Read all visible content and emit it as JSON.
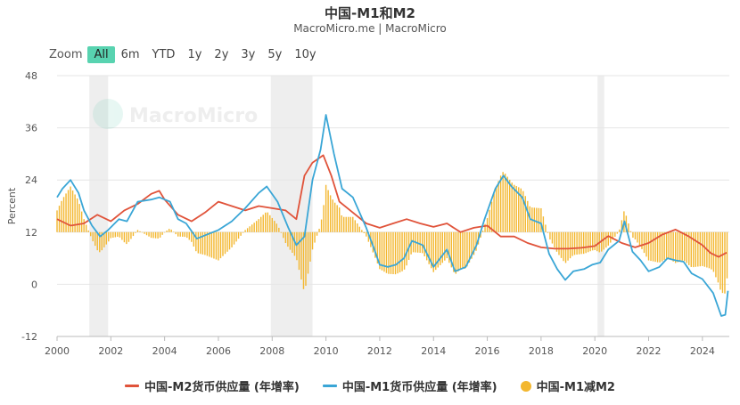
{
  "header": {
    "title": "中国-M1和M2",
    "subtitle": "MacroMicro.me | MacroMicro"
  },
  "watermark": "MacroMicro",
  "zoom": {
    "label": "Zoom",
    "buttons": [
      "All",
      "6m",
      "YTD",
      "1y",
      "2y",
      "3y",
      "5y",
      "10y"
    ],
    "active": "All"
  },
  "colors": {
    "m2": "#e0533a",
    "m1": "#3aa6d6",
    "diff": "#f3b72f",
    "zoom_active": "#58d3b0",
    "shade": "#eeeeee"
  },
  "chart_data": {
    "type": "line",
    "ylabel": "Percent",
    "ylim": [
      -12,
      48
    ],
    "yticks": [
      "48",
      "36",
      "24",
      "12",
      "0",
      "-12"
    ],
    "xlim": [
      2000,
      2025
    ],
    "xticks": [
      "2000",
      "2002",
      "2004",
      "2006",
      "2008",
      "2010",
      "2012",
      "2014",
      "2016",
      "2018",
      "2020",
      "2022",
      "2024"
    ],
    "recession_shading": [
      [
        2001.2,
        2001.9
      ],
      [
        2007.95,
        2009.5
      ],
      [
        2020.1,
        2020.35
      ]
    ],
    "bar_baseline": 12,
    "series": [
      {
        "name": "中国-M2货币供应量 (年增率)",
        "kind": "line",
        "points": [
          [
            2000.0,
            15
          ],
          [
            2000.5,
            13.5
          ],
          [
            2001.0,
            14
          ],
          [
            2001.5,
            16
          ],
          [
            2002.0,
            14.5
          ],
          [
            2002.5,
            17
          ],
          [
            2003.0,
            18.5
          ],
          [
            2003.5,
            20.8
          ],
          [
            2003.8,
            21.5
          ],
          [
            2004.0,
            19.5
          ],
          [
            2004.5,
            16
          ],
          [
            2005.0,
            14.5
          ],
          [
            2005.5,
            16.5
          ],
          [
            2006.0,
            19
          ],
          [
            2006.5,
            18
          ],
          [
            2007.0,
            17
          ],
          [
            2007.5,
            18
          ],
          [
            2008.0,
            17.5
          ],
          [
            2008.5,
            17
          ],
          [
            2008.9,
            15
          ],
          [
            2009.2,
            25
          ],
          [
            2009.5,
            28
          ],
          [
            2009.9,
            29.7
          ],
          [
            2010.2,
            25
          ],
          [
            2010.5,
            19
          ],
          [
            2011.0,
            16.5
          ],
          [
            2011.5,
            14
          ],
          [
            2012.0,
            13
          ],
          [
            2012.5,
            14
          ],
          [
            2013.0,
            15
          ],
          [
            2013.5,
            14
          ],
          [
            2014.0,
            13.2
          ],
          [
            2014.5,
            14
          ],
          [
            2015.0,
            12
          ],
          [
            2015.5,
            13
          ],
          [
            2016.0,
            13.5
          ],
          [
            2016.5,
            11
          ],
          [
            2017.0,
            11
          ],
          [
            2017.5,
            9.5
          ],
          [
            2018.0,
            8.5
          ],
          [
            2018.5,
            8.2
          ],
          [
            2019.0,
            8.2
          ],
          [
            2019.5,
            8.4
          ],
          [
            2020.0,
            8.8
          ],
          [
            2020.3,
            10.2
          ],
          [
            2020.5,
            11.1
          ],
          [
            2021.0,
            9.5
          ],
          [
            2021.5,
            8.5
          ],
          [
            2022.0,
            9.5
          ],
          [
            2022.5,
            11.4
          ],
          [
            2023.0,
            12.6
          ],
          [
            2023.5,
            11
          ],
          [
            2024.0,
            9
          ],
          [
            2024.3,
            7.2
          ],
          [
            2024.6,
            6.3
          ],
          [
            2024.9,
            7.3
          ]
        ]
      },
      {
        "name": "中国-M1货币供应量 (年增率)",
        "kind": "line",
        "points": [
          [
            2000.0,
            20
          ],
          [
            2000.2,
            22
          ],
          [
            2000.5,
            24
          ],
          [
            2000.8,
            21
          ],
          [
            2001.0,
            17
          ],
          [
            2001.3,
            13.5
          ],
          [
            2001.6,
            11
          ],
          [
            2001.9,
            12.5
          ],
          [
            2002.3,
            15
          ],
          [
            2002.6,
            14.5
          ],
          [
            2003.0,
            19
          ],
          [
            2003.5,
            19.5
          ],
          [
            2003.8,
            20
          ],
          [
            2004.2,
            19
          ],
          [
            2004.5,
            15
          ],
          [
            2004.8,
            14
          ],
          [
            2005.2,
            10.5
          ],
          [
            2005.6,
            11.5
          ],
          [
            2006.0,
            12.5
          ],
          [
            2006.5,
            14.5
          ],
          [
            2007.0,
            17.5
          ],
          [
            2007.5,
            21
          ],
          [
            2007.8,
            22.5
          ],
          [
            2008.2,
            19
          ],
          [
            2008.6,
            13
          ],
          [
            2008.9,
            9
          ],
          [
            2009.2,
            11
          ],
          [
            2009.5,
            24
          ],
          [
            2009.8,
            31
          ],
          [
            2010.0,
            39
          ],
          [
            2010.3,
            30
          ],
          [
            2010.6,
            22
          ],
          [
            2011.0,
            20
          ],
          [
            2011.5,
            13
          ],
          [
            2011.8,
            8
          ],
          [
            2012.0,
            4.5
          ],
          [
            2012.3,
            4
          ],
          [
            2012.6,
            4.5
          ],
          [
            2012.9,
            6
          ],
          [
            2013.2,
            10
          ],
          [
            2013.6,
            9
          ],
          [
            2014.0,
            4
          ],
          [
            2014.5,
            8
          ],
          [
            2014.8,
            3
          ],
          [
            2015.2,
            4
          ],
          [
            2015.6,
            9
          ],
          [
            2015.9,
            15
          ],
          [
            2016.3,
            22
          ],
          [
            2016.6,
            25
          ],
          [
            2016.9,
            22.5
          ],
          [
            2017.3,
            20
          ],
          [
            2017.6,
            15
          ],
          [
            2018.0,
            14
          ],
          [
            2018.3,
            7
          ],
          [
            2018.6,
            3.5
          ],
          [
            2018.9,
            1
          ],
          [
            2019.2,
            3
          ],
          [
            2019.6,
            3.5
          ],
          [
            2019.9,
            4.5
          ],
          [
            2020.2,
            5
          ],
          [
            2020.5,
            8
          ],
          [
            2020.9,
            10
          ],
          [
            2021.1,
            14.5
          ],
          [
            2021.4,
            7.5
          ],
          [
            2021.7,
            5.5
          ],
          [
            2022.0,
            3
          ],
          [
            2022.4,
            4
          ],
          [
            2022.7,
            6
          ],
          [
            2023.0,
            5.5
          ],
          [
            2023.3,
            5.2
          ],
          [
            2023.6,
            2.5
          ],
          [
            2024.0,
            1.2
          ],
          [
            2024.4,
            -2
          ],
          [
            2024.7,
            -7.3
          ],
          [
            2024.85,
            -7
          ],
          [
            2024.95,
            -1.5
          ]
        ]
      },
      {
        "name": "中国-M1减M2",
        "kind": "bar",
        "note": "bars drawn from 12% baseline; values = M1 minus M2, derived from the two series",
        "derived_from": [
          "中国-M1货币供应量 (年增率)",
          "中国-M2货币供应量 (年增率)"
        ]
      }
    ]
  },
  "legend": [
    {
      "label": "中国-M2货币供应量 (年增率)",
      "kind": "line",
      "color": "#e0533a"
    },
    {
      "label": "中国-M1货币供应量 (年增率)",
      "kind": "line",
      "color": "#3aa6d6"
    },
    {
      "label": "中国-M1减M2",
      "kind": "dot",
      "color": "#f3b72f"
    }
  ]
}
